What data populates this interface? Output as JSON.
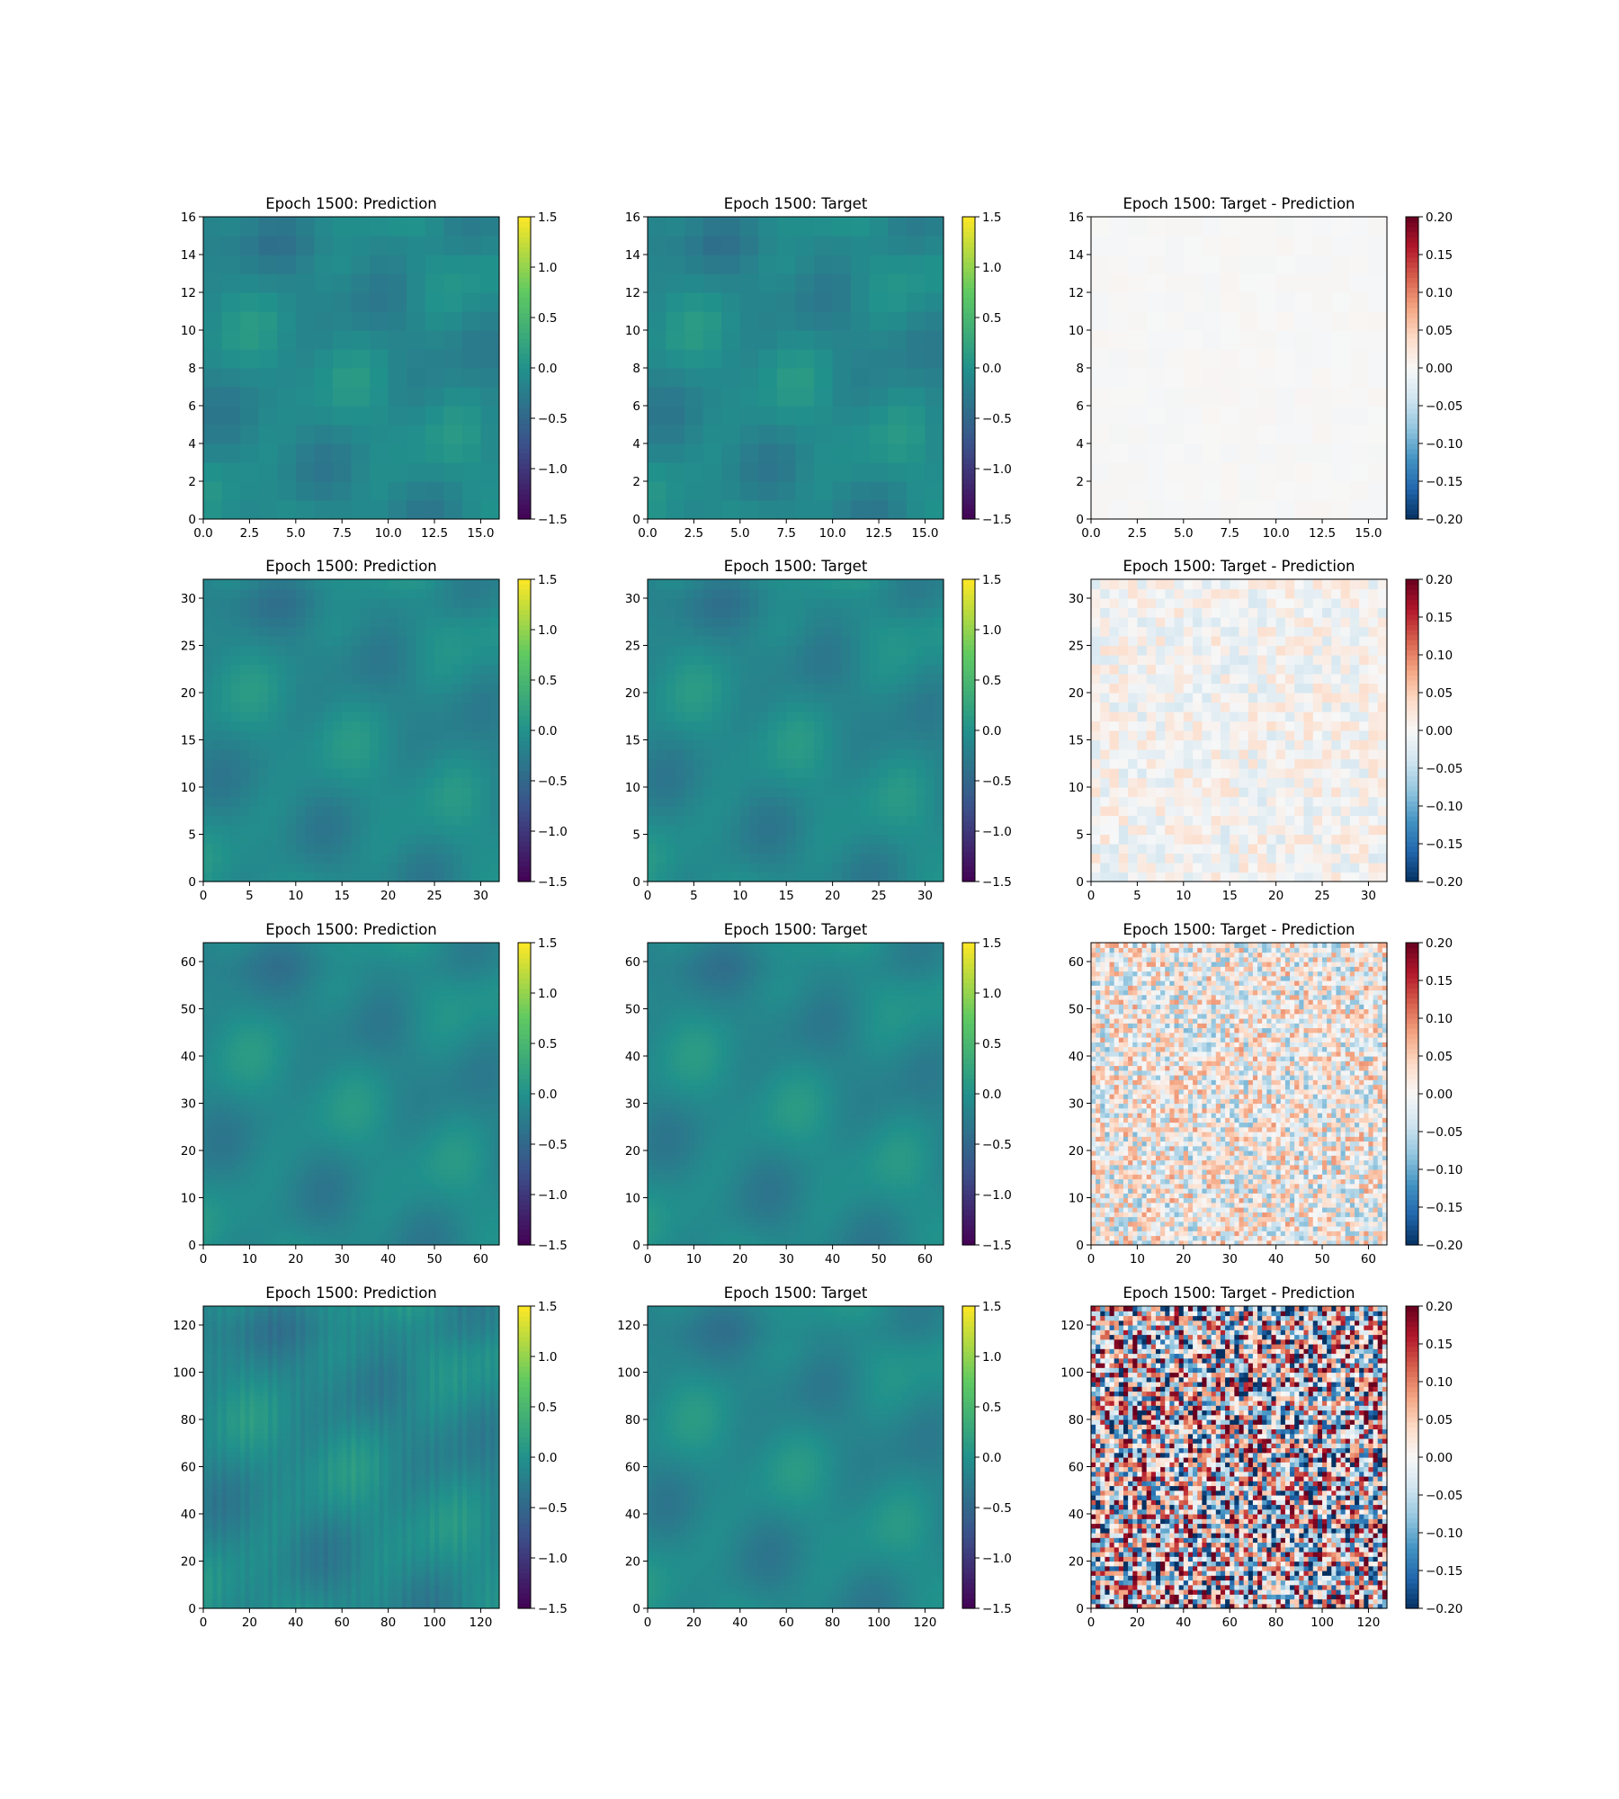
{
  "colors": {
    "viridis": [
      "#440154",
      "#3b528b",
      "#21918c",
      "#5ec962",
      "#fde725"
    ],
    "rdbu": [
      "#053061",
      "#2166ac",
      "#4393c3",
      "#92c5de",
      "#d1e5f0",
      "#f7f7f7",
      "#fddbc7",
      "#f4a582",
      "#d6604d",
      "#b2182b",
      "#67001f"
    ],
    "background": "#ffffff",
    "axis": "#000000"
  },
  "chart_data": [
    {
      "type": "heatmap",
      "row": 0,
      "col": 0,
      "title": "Epoch 1500: Prediction",
      "colormap": "viridis",
      "grid_size": 16,
      "smooth": false,
      "noise": 0,
      "xlim": [
        0,
        16
      ],
      "ylim": [
        0,
        16
      ],
      "xticks": [
        0,
        2.5,
        5,
        7.5,
        10,
        12.5,
        15
      ],
      "xtick_labels": [
        "0.0",
        "2.5",
        "5.0",
        "7.5",
        "10.0",
        "12.5",
        "15.0"
      ],
      "yticks": [
        0,
        2,
        4,
        6,
        8,
        10,
        12,
        14,
        16
      ],
      "ytick_labels": [
        "0",
        "2",
        "4",
        "6",
        "8",
        "10",
        "12",
        "14",
        "16"
      ],
      "colorbar": {
        "range": [
          -1.5,
          1.5
        ],
        "ticks": [
          -1.5,
          -1.0,
          -0.5,
          0.0,
          0.5,
          1.0,
          1.5
        ],
        "tick_labels": [
          "−1.5",
          "−1.0",
          "−0.5",
          "0.0",
          "0.5",
          "1.0",
          "1.5"
        ]
      }
    },
    {
      "type": "heatmap",
      "row": 0,
      "col": 1,
      "title": "Epoch 1500: Target",
      "colormap": "viridis",
      "grid_size": 16,
      "smooth": false,
      "noise": 0,
      "xlim": [
        0,
        16
      ],
      "ylim": [
        0,
        16
      ],
      "xticks": [
        0,
        2.5,
        5,
        7.5,
        10,
        12.5,
        15
      ],
      "xtick_labels": [
        "0.0",
        "2.5",
        "5.0",
        "7.5",
        "10.0",
        "12.5",
        "15.0"
      ],
      "yticks": [
        0,
        2,
        4,
        6,
        8,
        10,
        12,
        14,
        16
      ],
      "ytick_labels": [
        "0",
        "2",
        "4",
        "6",
        "8",
        "10",
        "12",
        "14",
        "16"
      ],
      "colorbar": {
        "range": [
          -1.5,
          1.5
        ],
        "ticks": [
          -1.5,
          -1.0,
          -0.5,
          0.0,
          0.5,
          1.0,
          1.5
        ],
        "tick_labels": [
          "−1.5",
          "−1.0",
          "−0.5",
          "0.0",
          "0.5",
          "1.0",
          "1.5"
        ]
      }
    },
    {
      "type": "heatmap",
      "row": 0,
      "col": 2,
      "title": "Epoch 1500: Target - Prediction",
      "colormap": "RdBu_r",
      "grid_size": 16,
      "smooth": false,
      "noise": 0.004,
      "xlim": [
        0,
        16
      ],
      "ylim": [
        0,
        16
      ],
      "xticks": [
        0,
        2.5,
        5,
        7.5,
        10,
        12.5,
        15
      ],
      "xtick_labels": [
        "0.0",
        "2.5",
        "5.0",
        "7.5",
        "10.0",
        "12.5",
        "15.0"
      ],
      "yticks": [
        0,
        2,
        4,
        6,
        8,
        10,
        12,
        14,
        16
      ],
      "ytick_labels": [
        "0",
        "2",
        "4",
        "6",
        "8",
        "10",
        "12",
        "14",
        "16"
      ],
      "colorbar": {
        "range": [
          -0.2,
          0.2
        ],
        "ticks": [
          -0.2,
          -0.15,
          -0.1,
          -0.05,
          0.0,
          0.05,
          0.1,
          0.15,
          0.2
        ],
        "tick_labels": [
          "−0.20",
          "−0.15",
          "−0.10",
          "−0.05",
          "0.00",
          "0.05",
          "0.10",
          "0.15",
          "0.20"
        ]
      }
    },
    {
      "type": "heatmap",
      "row": 1,
      "col": 0,
      "title": "Epoch 1500: Prediction",
      "colormap": "viridis",
      "grid_size": 32,
      "smooth": false,
      "noise": 0,
      "xlim": [
        0,
        32
      ],
      "ylim": [
        0,
        32
      ],
      "xticks": [
        0,
        5,
        10,
        15,
        20,
        25,
        30
      ],
      "xtick_labels": [
        "0",
        "5",
        "10",
        "15",
        "20",
        "25",
        "30"
      ],
      "yticks": [
        0,
        5,
        10,
        15,
        20,
        25,
        30
      ],
      "ytick_labels": [
        "0",
        "5",
        "10",
        "15",
        "20",
        "25",
        "30"
      ],
      "colorbar": {
        "range": [
          -1.5,
          1.5
        ],
        "ticks": [
          -1.5,
          -1.0,
          -0.5,
          0.0,
          0.5,
          1.0,
          1.5
        ],
        "tick_labels": [
          "−1.5",
          "−1.0",
          "−0.5",
          "0.0",
          "0.5",
          "1.0",
          "1.5"
        ]
      }
    },
    {
      "type": "heatmap",
      "row": 1,
      "col": 1,
      "title": "Epoch 1500: Target",
      "colormap": "viridis",
      "grid_size": 32,
      "smooth": false,
      "noise": 0,
      "xlim": [
        0,
        32
      ],
      "ylim": [
        0,
        32
      ],
      "xticks": [
        0,
        5,
        10,
        15,
        20,
        25,
        30
      ],
      "xtick_labels": [
        "0",
        "5",
        "10",
        "15",
        "20",
        "25",
        "30"
      ],
      "yticks": [
        0,
        5,
        10,
        15,
        20,
        25,
        30
      ],
      "ytick_labels": [
        "0",
        "5",
        "10",
        "15",
        "20",
        "25",
        "30"
      ],
      "colorbar": {
        "range": [
          -1.5,
          1.5
        ],
        "ticks": [
          -1.5,
          -1.0,
          -0.5,
          0.0,
          0.5,
          1.0,
          1.5
        ],
        "tick_labels": [
          "−1.5",
          "−1.0",
          "−0.5",
          "0.0",
          "0.5",
          "1.0",
          "1.5"
        ]
      }
    },
    {
      "type": "heatmap",
      "row": 1,
      "col": 2,
      "title": "Epoch 1500: Target - Prediction",
      "colormap": "RdBu_r",
      "grid_size": 32,
      "smooth": false,
      "noise": 0.035,
      "xlim": [
        0,
        32
      ],
      "ylim": [
        0,
        32
      ],
      "xticks": [
        0,
        5,
        10,
        15,
        20,
        25,
        30
      ],
      "xtick_labels": [
        "0",
        "5",
        "10",
        "15",
        "20",
        "25",
        "30"
      ],
      "yticks": [
        0,
        5,
        10,
        15,
        20,
        25,
        30
      ],
      "ytick_labels": [
        "0",
        "5",
        "10",
        "15",
        "20",
        "25",
        "30"
      ],
      "colorbar": {
        "range": [
          -0.2,
          0.2
        ],
        "ticks": [
          -0.2,
          -0.15,
          -0.1,
          -0.05,
          0.0,
          0.05,
          0.1,
          0.15,
          0.2
        ],
        "tick_labels": [
          "−0.20",
          "−0.15",
          "−0.10",
          "−0.05",
          "0.00",
          "0.05",
          "0.10",
          "0.15",
          "0.20"
        ]
      }
    },
    {
      "type": "heatmap",
      "row": 2,
      "col": 0,
      "title": "Epoch 1500: Prediction",
      "colormap": "viridis",
      "grid_size": 64,
      "smooth": false,
      "noise": 0,
      "xlim": [
        0,
        64
      ],
      "ylim": [
        0,
        64
      ],
      "xticks": [
        0,
        10,
        20,
        30,
        40,
        50,
        60
      ],
      "xtick_labels": [
        "0",
        "10",
        "20",
        "30",
        "40",
        "50",
        "60"
      ],
      "yticks": [
        0,
        10,
        20,
        30,
        40,
        50,
        60
      ],
      "ytick_labels": [
        "0",
        "10",
        "20",
        "30",
        "40",
        "50",
        "60"
      ],
      "colorbar": {
        "range": [
          -1.5,
          1.5
        ],
        "ticks": [
          -1.5,
          -1.0,
          -0.5,
          0.0,
          0.5,
          1.0,
          1.5
        ],
        "tick_labels": [
          "−1.5",
          "−1.0",
          "−0.5",
          "0.0",
          "0.5",
          "1.0",
          "1.5"
        ]
      }
    },
    {
      "type": "heatmap",
      "row": 2,
      "col": 1,
      "title": "Epoch 1500: Target",
      "colormap": "viridis",
      "grid_size": 64,
      "smooth": false,
      "noise": 0,
      "xlim": [
        0,
        64
      ],
      "ylim": [
        0,
        64
      ],
      "xticks": [
        0,
        10,
        20,
        30,
        40,
        50,
        60
      ],
      "xtick_labels": [
        "0",
        "10",
        "20",
        "30",
        "40",
        "50",
        "60"
      ],
      "yticks": [
        0,
        10,
        20,
        30,
        40,
        50,
        60
      ],
      "ytick_labels": [
        "0",
        "10",
        "20",
        "30",
        "40",
        "50",
        "60"
      ],
      "colorbar": {
        "range": [
          -1.5,
          1.5
        ],
        "ticks": [
          -1.5,
          -1.0,
          -0.5,
          0.0,
          0.5,
          1.0,
          1.5
        ],
        "tick_labels": [
          "−1.5",
          "−1.0",
          "−0.5",
          "0.0",
          "0.5",
          "1.0",
          "1.5"
        ]
      }
    },
    {
      "type": "heatmap",
      "row": 2,
      "col": 2,
      "title": "Epoch 1500: Target - Prediction",
      "colormap": "RdBu_r",
      "grid_size": 64,
      "smooth": false,
      "noise": 0.09,
      "xlim": [
        0,
        64
      ],
      "ylim": [
        0,
        64
      ],
      "xticks": [
        0,
        10,
        20,
        30,
        40,
        50,
        60
      ],
      "xtick_labels": [
        "0",
        "10",
        "20",
        "30",
        "40",
        "50",
        "60"
      ],
      "yticks": [
        0,
        10,
        20,
        30,
        40,
        50,
        60
      ],
      "ytick_labels": [
        "0",
        "10",
        "20",
        "30",
        "40",
        "50",
        "60"
      ],
      "colorbar": {
        "range": [
          -0.2,
          0.2
        ],
        "ticks": [
          -0.2,
          -0.15,
          -0.1,
          -0.05,
          0.0,
          0.05,
          0.1,
          0.15,
          0.2
        ],
        "tick_labels": [
          "−0.20",
          "−0.15",
          "−0.10",
          "−0.05",
          "0.00",
          "0.05",
          "0.10",
          "0.15",
          "0.20"
        ]
      }
    },
    {
      "type": "heatmap",
      "row": 3,
      "col": 0,
      "title": "Epoch 1500: Prediction",
      "colormap": "viridis",
      "grid_size": 128,
      "smooth": true,
      "noise": 0,
      "xlim": [
        0,
        128
      ],
      "ylim": [
        0,
        128
      ],
      "xticks": [
        0,
        20,
        40,
        60,
        80,
        100,
        120
      ],
      "xtick_labels": [
        "0",
        "20",
        "40",
        "60",
        "80",
        "100",
        "120"
      ],
      "yticks": [
        0,
        20,
        40,
        60,
        80,
        100,
        120
      ],
      "ytick_labels": [
        "0",
        "20",
        "40",
        "60",
        "80",
        "100",
        "120"
      ],
      "colorbar": {
        "range": [
          -1.5,
          1.5
        ],
        "ticks": [
          -1.5,
          -1.0,
          -0.5,
          0.0,
          0.5,
          1.0,
          1.5
        ],
        "tick_labels": [
          "−1.5",
          "−1.0",
          "−0.5",
          "0.0",
          "0.5",
          "1.0",
          "1.5"
        ]
      }
    },
    {
      "type": "heatmap",
      "row": 3,
      "col": 1,
      "title": "Epoch 1500: Target",
      "colormap": "viridis",
      "grid_size": 128,
      "smooth": true,
      "noise": 0,
      "xlim": [
        0,
        128
      ],
      "ylim": [
        0,
        128
      ],
      "xticks": [
        0,
        20,
        40,
        60,
        80,
        100,
        120
      ],
      "xtick_labels": [
        "0",
        "20",
        "40",
        "60",
        "80",
        "100",
        "120"
      ],
      "yticks": [
        0,
        20,
        40,
        60,
        80,
        100,
        120
      ],
      "ytick_labels": [
        "0",
        "20",
        "40",
        "60",
        "80",
        "100",
        "120"
      ],
      "colorbar": {
        "range": [
          -1.5,
          1.5
        ],
        "ticks": [
          -1.5,
          -1.0,
          -0.5,
          0.0,
          0.5,
          1.0,
          1.5
        ],
        "tick_labels": [
          "−1.5",
          "−1.0",
          "−0.5",
          "0.0",
          "0.5",
          "1.0",
          "1.5"
        ]
      }
    },
    {
      "type": "heatmap",
      "row": 3,
      "col": 2,
      "title": "Epoch 1500: Target - Prediction",
      "colormap": "RdBu_r",
      "grid_size": 128,
      "smooth": true,
      "noise": 0.2,
      "xlim": [
        0,
        128
      ],
      "ylim": [
        0,
        128
      ],
      "xticks": [
        0,
        20,
        40,
        60,
        80,
        100,
        120
      ],
      "xtick_labels": [
        "0",
        "20",
        "40",
        "60",
        "80",
        "100",
        "120"
      ],
      "yticks": [
        0,
        20,
        40,
        60,
        80,
        100,
        120
      ],
      "ytick_labels": [
        "0",
        "20",
        "40",
        "60",
        "80",
        "100",
        "120"
      ],
      "colorbar": {
        "range": [
          -0.2,
          0.2
        ],
        "ticks": [
          -0.2,
          -0.15,
          -0.1,
          -0.05,
          0.0,
          0.05,
          0.1,
          0.15,
          0.2
        ],
        "tick_labels": [
          "−0.20",
          "−0.15",
          "−0.10",
          "−0.05",
          "0.00",
          "0.05",
          "0.10",
          "0.15",
          "0.20"
        ]
      }
    }
  ]
}
